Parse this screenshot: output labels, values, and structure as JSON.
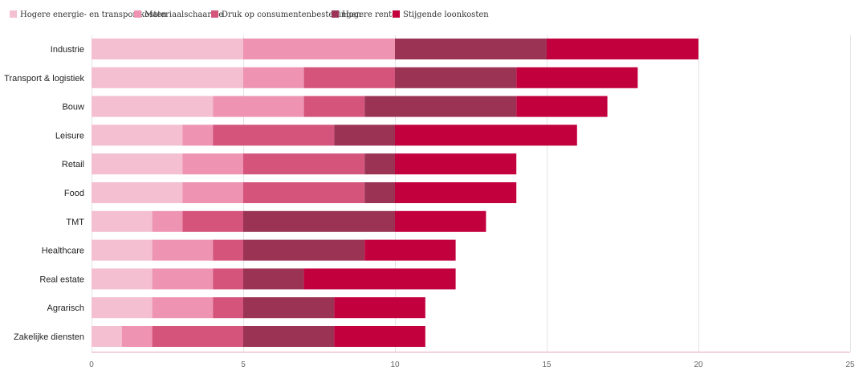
{
  "chart_data": {
    "type": "bar",
    "orientation": "horizontal",
    "stacked": true,
    "legend_position": "top-left",
    "grid": true,
    "xlim": [
      0,
      25
    ],
    "ticks": [
      "0",
      "5",
      "10",
      "15",
      "20",
      "25"
    ],
    "tick_values": [
      0,
      5,
      10,
      15,
      20,
      25
    ],
    "categories": [
      "Industrie",
      "Transport & logistiek",
      "Bouw",
      "Leisure",
      "Retail",
      "Food",
      "TMT",
      "Healthcare",
      "Real estate",
      "Agrarisch",
      "Zakelijke diensten"
    ],
    "series": [
      {
        "name": "Hogere energie- en transportkosten",
        "color": "#f4bfd0",
        "values": [
          5,
          5,
          4,
          3,
          3,
          3,
          2,
          2,
          2,
          2,
          1
        ]
      },
      {
        "name": "Materiaalschaarste",
        "color": "#ee94b2",
        "values": [
          5,
          2,
          3,
          1,
          2,
          2,
          1,
          2,
          2,
          2,
          1
        ]
      },
      {
        "name": "Druk op consumentenbestedingen",
        "color": "#d5547c",
        "values": [
          0,
          3,
          2,
          4,
          4,
          4,
          2,
          1,
          1,
          1,
          3
        ]
      },
      {
        "name": "Hogere rente",
        "color": "#9b3355",
        "values": [
          5,
          4,
          5,
          2,
          1,
          1,
          5,
          4,
          2,
          3,
          3
        ]
      },
      {
        "name": "Stijgende loonkosten",
        "color": "#c2003d",
        "values": [
          5,
          4,
          3,
          6,
          4,
          4,
          3,
          3,
          5,
          3,
          3
        ]
      }
    ]
  }
}
